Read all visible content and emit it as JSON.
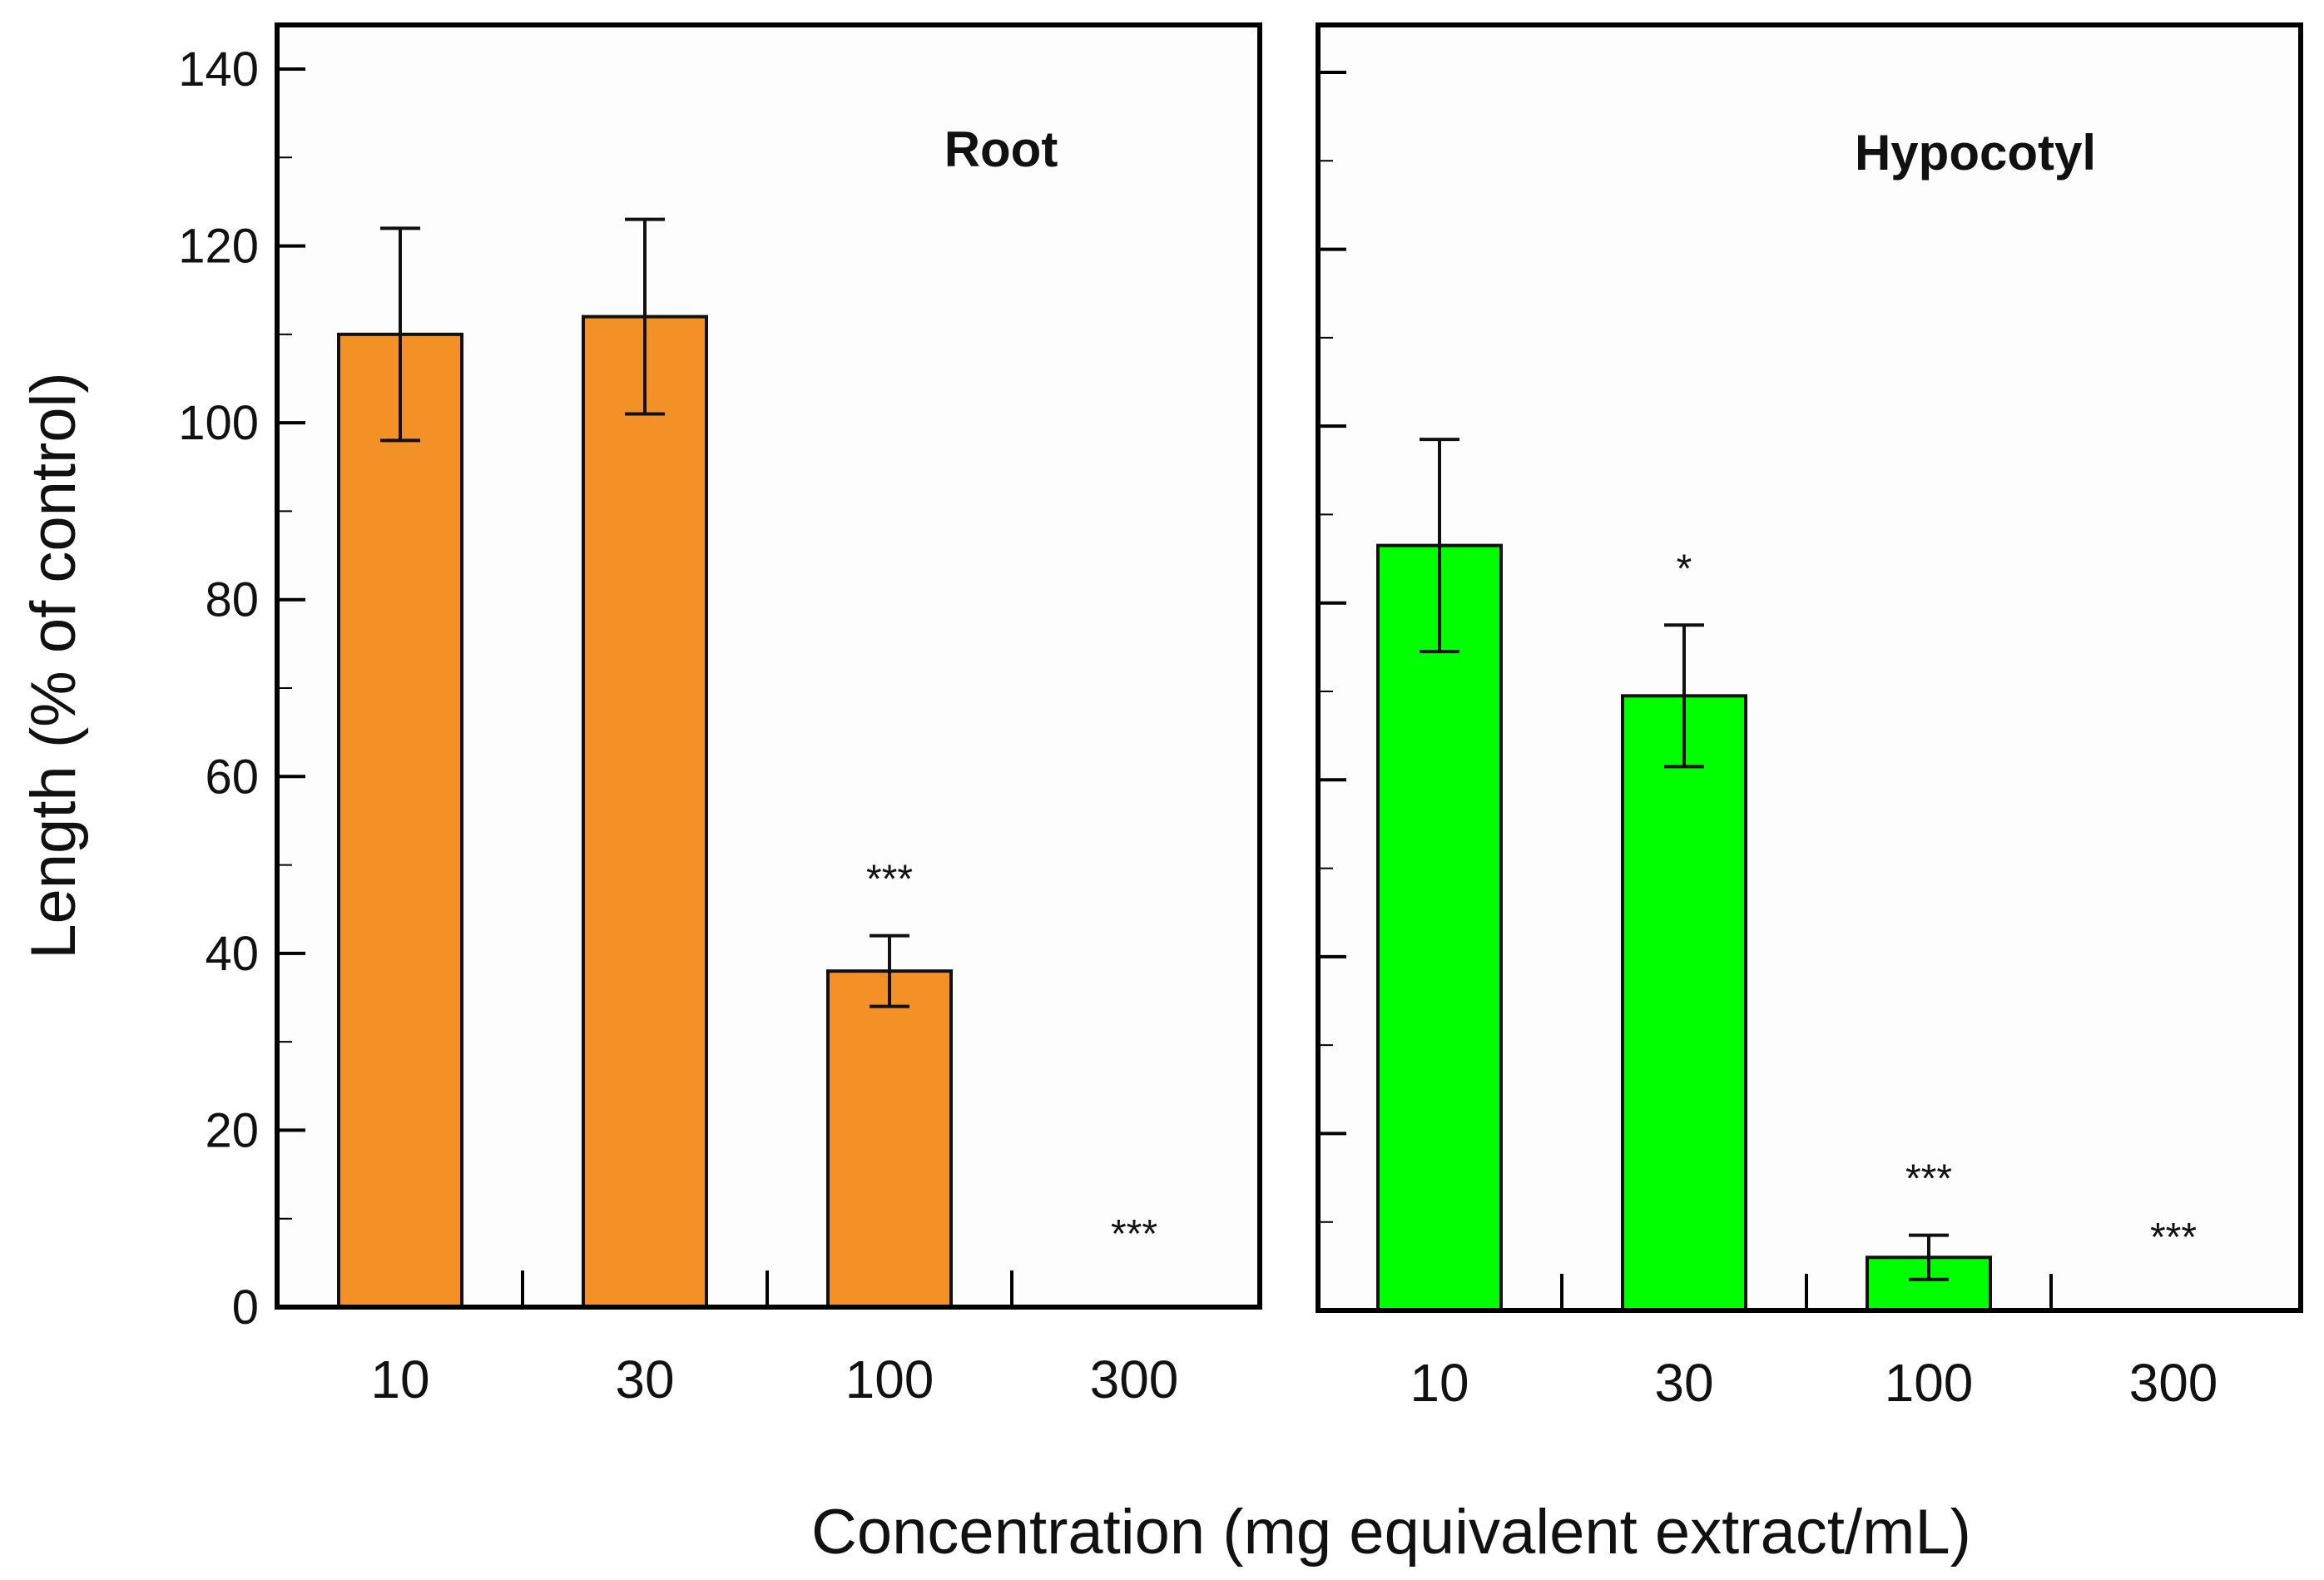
{
  "chart_data": [
    {
      "type": "bar",
      "title": "Root",
      "xlabel": "Concentration (mg equivalent extract/mL)",
      "ylabel": "Length  (% of control)",
      "categories": [
        "10",
        "30",
        "100",
        "300"
      ],
      "values": [
        110,
        112,
        38,
        0
      ],
      "errors": [
        12,
        11,
        4,
        0
      ],
      "significance": [
        "",
        "",
        "***",
        "***"
      ],
      "yticks": [
        "0",
        "20",
        "40",
        "60",
        "80",
        "100",
        "120",
        "140"
      ],
      "ylim": [
        0,
        140
      ],
      "color": "#f39127"
    },
    {
      "type": "bar",
      "title": "Hypocotyl",
      "categories": [
        "10",
        "30",
        "100",
        "300"
      ],
      "values": [
        86.5,
        69.5,
        6,
        0
      ],
      "errors": [
        12,
        8,
        2.5,
        0
      ],
      "significance": [
        "",
        "*",
        "***",
        "***"
      ],
      "ylim": [
        0,
        140
      ],
      "color": "#00ff00"
    }
  ]
}
